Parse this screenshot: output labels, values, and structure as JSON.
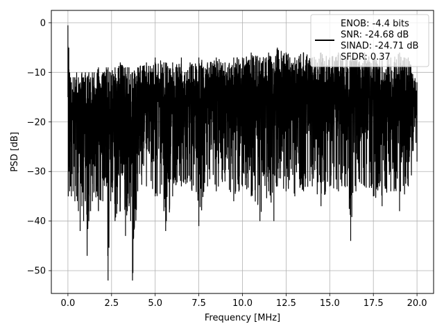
{
  "chart_data": {
    "type": "line",
    "title": "",
    "xlabel": "Frequency [MHz]",
    "ylabel": "PSD [dB]",
    "xlim": [
      -0.95,
      20.95
    ],
    "ylim": [
      -54.6,
      2.5
    ],
    "xticks": [
      0.0,
      2.5,
      5.0,
      7.5,
      10.0,
      12.5,
      15.0,
      17.5,
      20.0
    ],
    "xtick_labels": [
      "0.0",
      "2.5",
      "5.0",
      "7.5",
      "10.0",
      "12.5",
      "15.0",
      "17.5",
      "20.0"
    ],
    "yticks": [
      0,
      -10,
      -20,
      -30,
      -40,
      -50
    ],
    "ytick_labels": [
      "0",
      "−10",
      "−20",
      "−30",
      "−40",
      "−50"
    ],
    "grid": true,
    "legend_position": "top-right",
    "legend": [
      "ENOB: -4.4 bits",
      "SNR: -24.68 dB",
      "SINAD: -24.71 dB",
      "SFDR: 0.37"
    ],
    "series": [
      {
        "color": "#000000",
        "x": [
          0.0,
          0.02,
          0.05,
          0.1,
          0.15,
          0.2,
          0.3,
          0.4,
          0.5,
          0.6,
          0.7,
          0.8,
          0.9,
          1.0,
          1.1,
          1.2,
          1.3,
          1.4,
          1.5,
          1.75,
          2.0,
          2.2,
          2.3,
          2.45,
          2.7,
          3.0,
          3.3,
          3.5,
          3.7,
          4.0,
          4.5,
          5.0,
          5.5,
          5.6,
          6.0,
          6.5,
          7.0,
          7.5,
          8.0,
          8.5,
          9.0,
          9.5,
          10.0,
          10.5,
          11.0,
          11.5,
          11.8,
          12.0,
          12.5,
          13.0,
          13.5,
          14.0,
          14.5,
          15.0,
          15.5,
          16.0,
          16.2,
          16.5,
          17.0,
          17.5,
          18.0,
          18.5,
          19.0,
          19.5,
          20.0
        ],
        "upper": [
          -0.5,
          -8,
          -5,
          -10,
          -11,
          -12,
          -11,
          -11,
          -10,
          -11,
          -12,
          -10,
          -11,
          -10,
          -11,
          -10,
          -11,
          -10,
          -10,
          -9,
          -10,
          -9,
          -9,
          -10,
          -9,
          -8,
          -9,
          -9,
          -10,
          -9,
          -8,
          -7,
          -8,
          -8,
          -8,
          -7,
          -8,
          -7,
          -8,
          -7,
          -8,
          -7,
          -7,
          -6,
          -7,
          -6,
          -8,
          -5,
          -6,
          -7,
          -6,
          -7,
          -6,
          -7,
          -6,
          -7,
          -6,
          -7,
          -6,
          -7,
          -7,
          -7,
          -6,
          -7,
          -12
        ],
        "lower": [
          -15,
          -35,
          -30,
          -34,
          -33,
          -35,
          -34,
          -36,
          -35,
          -38,
          -42,
          -37,
          -40,
          -36,
          -47,
          -40,
          -38,
          -36,
          -34,
          -38,
          -36,
          -33,
          -52,
          -36,
          -40,
          -38,
          -43,
          -37,
          -52,
          -34,
          -33,
          -35,
          -38,
          -42,
          -35,
          -33,
          -32,
          -41,
          -33,
          -34,
          -32,
          -36,
          -33,
          -35,
          -40,
          -34,
          -40,
          -33,
          -34,
          -35,
          -34,
          -33,
          -37,
          -33,
          -34,
          -33,
          -44,
          -34,
          -33,
          -35,
          -37,
          -34,
          -38,
          -33,
          -28
        ]
      }
    ]
  }
}
